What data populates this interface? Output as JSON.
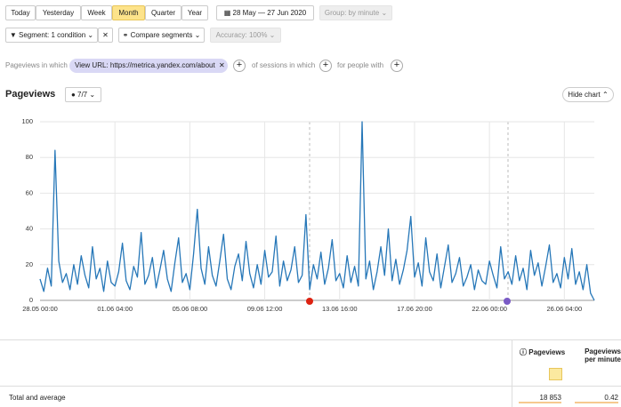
{
  "periods": [
    "Today",
    "Yesterday",
    "Week",
    "Month",
    "Quarter",
    "Year"
  ],
  "date_range": "28 May — 27 Jun 2020",
  "group": "Group: by minute",
  "segment": "Segment: 1 condition",
  "compare": "Compare segments",
  "accuracy": "Accuracy: 100%",
  "filter": {
    "prefix": "Pageviews in which",
    "condition": "View URL: https://metrica.yandex.com/about",
    "sessions": "of sessions in which",
    "people": "for people with"
  },
  "report": {
    "title": "Pageviews",
    "series_count": "7/7",
    "hide_chart": "Hide chart"
  },
  "chart_data": {
    "type": "line",
    "color": "#2677b8",
    "ylim": [
      0,
      100
    ],
    "yticks": [
      0,
      20,
      40,
      60,
      80,
      100
    ],
    "grid": true,
    "categories": [
      "28.05 00:00",
      null,
      null,
      null,
      null,
      null,
      null,
      null,
      null,
      null,
      null,
      null,
      null,
      null,
      null,
      null,
      null,
      null,
      null,
      null,
      "01.06 04:00",
      null,
      null,
      null,
      null,
      null,
      null,
      null,
      null,
      null,
      null,
      null,
      null,
      null,
      null,
      null,
      null,
      null,
      null,
      null,
      "05.06 08:00",
      null,
      null,
      null,
      null,
      null,
      null,
      null,
      null,
      null,
      null,
      null,
      null,
      null,
      null,
      null,
      null,
      null,
      null,
      null,
      "09.06 12:00",
      null,
      null,
      null,
      null,
      null,
      null,
      null,
      null,
      null,
      null,
      null,
      null,
      null,
      null,
      null,
      null,
      null,
      null,
      null,
      "13.06 16:00",
      null,
      null,
      null,
      null,
      null,
      null,
      null,
      null,
      null,
      null,
      null,
      null,
      null,
      null,
      null,
      null,
      null,
      null,
      null,
      "17.06 20:00",
      null,
      null,
      null,
      null,
      null,
      null,
      null,
      null,
      null,
      null,
      null,
      null,
      null,
      null,
      null,
      null,
      null,
      null,
      null,
      "22.06 00:00",
      null,
      null,
      null,
      null,
      null,
      null,
      null,
      null,
      null,
      null,
      null,
      null,
      null,
      null,
      null,
      null,
      null,
      null,
      null,
      "26.06 04:00",
      null,
      null,
      null,
      null,
      null,
      null,
      null,
      null
    ],
    "values": [
      12,
      5,
      18,
      8,
      84,
      22,
      10,
      15,
      6,
      20,
      9,
      25,
      14,
      7,
      30,
      12,
      18,
      5,
      22,
      10,
      8,
      16,
      32,
      11,
      6,
      19,
      13,
      38,
      9,
      14,
      24,
      7,
      17,
      28,
      12,
      5,
      21,
      35,
      10,
      15,
      6,
      26,
      51,
      18,
      9,
      30,
      14,
      8,
      22,
      37,
      12,
      6,
      19,
      26,
      11,
      33,
      15,
      7,
      20,
      9,
      28,
      13,
      16,
      36,
      8,
      22,
      11,
      17,
      30,
      10,
      14,
      48,
      6,
      20,
      12,
      27,
      9,
      18,
      34,
      11,
      15,
      7,
      25,
      10,
      19,
      8,
      100,
      12,
      22,
      6,
      16,
      30,
      14,
      40,
      11,
      23,
      9,
      17,
      28,
      47,
      13,
      21,
      8,
      35,
      16,
      11,
      26,
      7,
      19,
      31,
      10,
      15,
      24,
      8,
      13,
      20,
      6,
      17,
      11,
      9,
      22,
      14,
      7,
      30,
      12,
      16,
      9,
      25,
      11,
      18,
      6,
      28,
      14,
      21,
      8,
      19,
      31,
      10,
      15,
      7,
      24,
      12,
      29,
      9,
      16,
      6,
      20,
      4,
      0
    ]
  },
  "table": {
    "columns": [
      "Pageviews",
      "Pageviews per minute"
    ],
    "row": {
      "label": "Total and average",
      "values": [
        "18 853",
        "0.42"
      ]
    }
  }
}
